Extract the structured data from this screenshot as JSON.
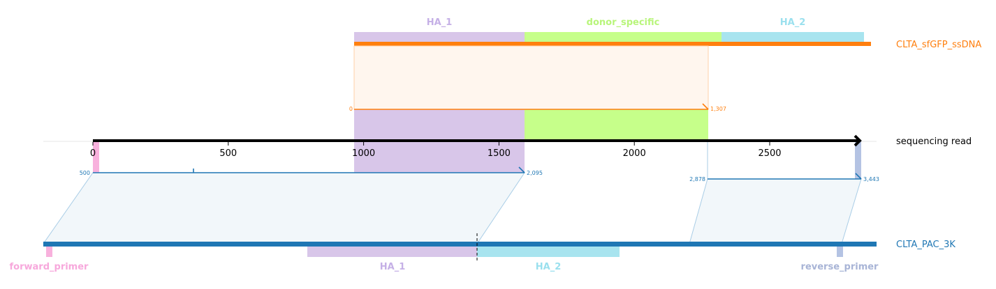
{
  "colors": {
    "ha1": "#d8c6e9",
    "donor": "#c6ff8a",
    "ha2": "#a8e4ef",
    "donor_line": "#ff7f0e",
    "read_line": "#1f77b4",
    "forward_primer": "#f8b1dd",
    "reverse_primer": "#b4c3e3",
    "ha1_text": "#c5b0e6",
    "donor_text": "#b8f57a",
    "ha2_text": "#9ae0ee",
    "fp_text": "#f7a8dc",
    "rp_text": "#a8b4d6"
  },
  "donor": {
    "name": "CLTA_sfGFP_ssDNA",
    "features": [
      {
        "label": "HA_1"
      },
      {
        "label": "donor_specific"
      },
      {
        "label": "HA_2"
      }
    ],
    "alignment": {
      "start": "0",
      "end": "1,307"
    }
  },
  "read": {
    "name": "sequencing read",
    "ticks": [
      "0",
      "500",
      "1000",
      "1500",
      "2000",
      "2500"
    ],
    "left_alignment": {
      "start": "500",
      "end": "2,095"
    },
    "right_alignment": {
      "start": "2,878",
      "end": "3,443"
    }
  },
  "target": {
    "name": "CLTA_PAC_3K",
    "features": [
      {
        "label": "forward_primer"
      },
      {
        "label": "HA_1"
      },
      {
        "label": "HA_2"
      },
      {
        "label": "reverse_primer"
      }
    ]
  }
}
